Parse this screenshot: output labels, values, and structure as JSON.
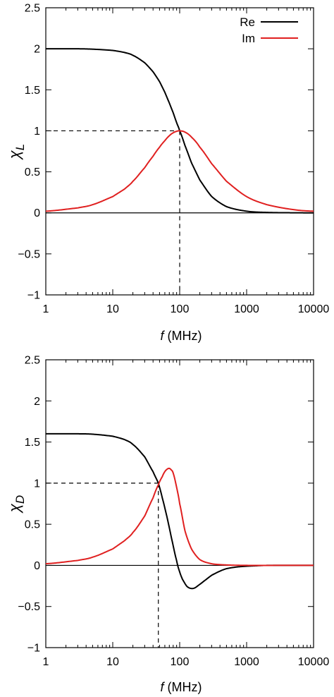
{
  "chart_data": [
    {
      "type": "line",
      "id": "top",
      "xlabel_italic": "f",
      "xlabel": "(MHz)",
      "ylabel_symbol": "χ",
      "ylabel_sub": "L",
      "x_scale": "log",
      "xlim": [
        1,
        10000
      ],
      "ylim": [
        -1,
        2.5
      ],
      "x_ticks": [
        1,
        10,
        100,
        1000,
        10000
      ],
      "x_tick_labels": [
        "1",
        "10",
        "100",
        "1000",
        "10000"
      ],
      "y_ticks": [
        -1,
        -0.5,
        0,
        0.5,
        1,
        1.5,
        2,
        2.5
      ],
      "y_tick_labels": [
        "−1",
        "−0.5",
        "0",
        "0.5",
        "1",
        "1.5",
        "2",
        "2.5"
      ],
      "grid": false,
      "legend": "top-right",
      "zero_line": true,
      "guides": {
        "x": 100,
        "y": 1
      },
      "series": [
        {
          "name": "Re",
          "color": "#000000",
          "x": [
            1,
            3,
            5,
            10,
            15,
            20,
            30,
            40,
            50,
            60,
            70,
            80,
            90,
            100,
            120,
            150,
            200,
            300,
            500,
            1000,
            2000,
            5000,
            10000
          ],
          "y": [
            2.0,
            2.0,
            1.995,
            1.98,
            1.955,
            1.92,
            1.83,
            1.72,
            1.6,
            1.47,
            1.34,
            1.22,
            1.1,
            1.0,
            0.82,
            0.61,
            0.4,
            0.2,
            0.076,
            0.02,
            0.005,
            0.001,
            0.0
          ]
        },
        {
          "name": "Im",
          "color": "#e02020",
          "x": [
            1,
            3,
            5,
            10,
            15,
            20,
            30,
            40,
            50,
            60,
            70,
            80,
            90,
            100,
            120,
            150,
            200,
            300,
            500,
            1000,
            2000,
            5000,
            10000
          ],
          "y": [
            0.02,
            0.06,
            0.1,
            0.198,
            0.29,
            0.385,
            0.55,
            0.69,
            0.8,
            0.88,
            0.94,
            0.976,
            0.994,
            1.0,
            0.984,
            0.923,
            0.8,
            0.6,
            0.385,
            0.198,
            0.1,
            0.04,
            0.02
          ]
        }
      ]
    },
    {
      "type": "line",
      "id": "bottom",
      "xlabel_italic": "f",
      "xlabel": "(MHz)",
      "ylabel_symbol": "χ",
      "ylabel_sub": "D",
      "x_scale": "log",
      "xlim": [
        1,
        10000
      ],
      "ylim": [
        -1,
        2.5
      ],
      "x_ticks": [
        1,
        10,
        100,
        1000,
        10000
      ],
      "x_tick_labels": [
        "1",
        "10",
        "100",
        "1000",
        "10000"
      ],
      "y_ticks": [
        -1,
        -0.5,
        0,
        0.5,
        1,
        1.5,
        2,
        2.5
      ],
      "y_tick_labels": [
        "−1",
        "−0.5",
        "0",
        "0.5",
        "1",
        "1.5",
        "2",
        "2.5"
      ],
      "grid": false,
      "legend": "none",
      "zero_line": true,
      "guides": {
        "x": 48,
        "y": 1
      },
      "series": [
        {
          "name": "",
          "color": "#000000",
          "x": [
            1,
            3,
            5,
            10,
            15,
            20,
            30,
            40,
            48,
            55,
            65,
            75,
            90,
            100,
            110,
            130,
            160,
            200,
            250,
            300,
            400,
            500,
            700,
            1000,
            2000,
            10000
          ],
          "y": [
            1.6,
            1.6,
            1.595,
            1.57,
            1.53,
            1.47,
            1.32,
            1.14,
            1.0,
            0.82,
            0.58,
            0.34,
            0.06,
            -0.08,
            -0.17,
            -0.26,
            -0.28,
            -0.23,
            -0.17,
            -0.12,
            -0.07,
            -0.04,
            -0.02,
            -0.01,
            0.0,
            0.0
          ]
        },
        {
          "name": "",
          "color": "#e02020",
          "x": [
            1,
            3,
            5,
            10,
            15,
            20,
            30,
            40,
            48,
            55,
            60,
            65,
            70,
            75,
            80,
            90,
            100,
            120,
            150,
            200,
            300,
            500,
            1000,
            3000,
            10000
          ],
          "y": [
            0.02,
            0.06,
            0.1,
            0.2,
            0.3,
            0.4,
            0.6,
            0.82,
            0.98,
            1.08,
            1.14,
            1.17,
            1.18,
            1.16,
            1.12,
            0.95,
            0.75,
            0.42,
            0.2,
            0.07,
            0.02,
            0.005,
            0.0,
            0.0,
            0.0
          ]
        }
      ]
    }
  ]
}
